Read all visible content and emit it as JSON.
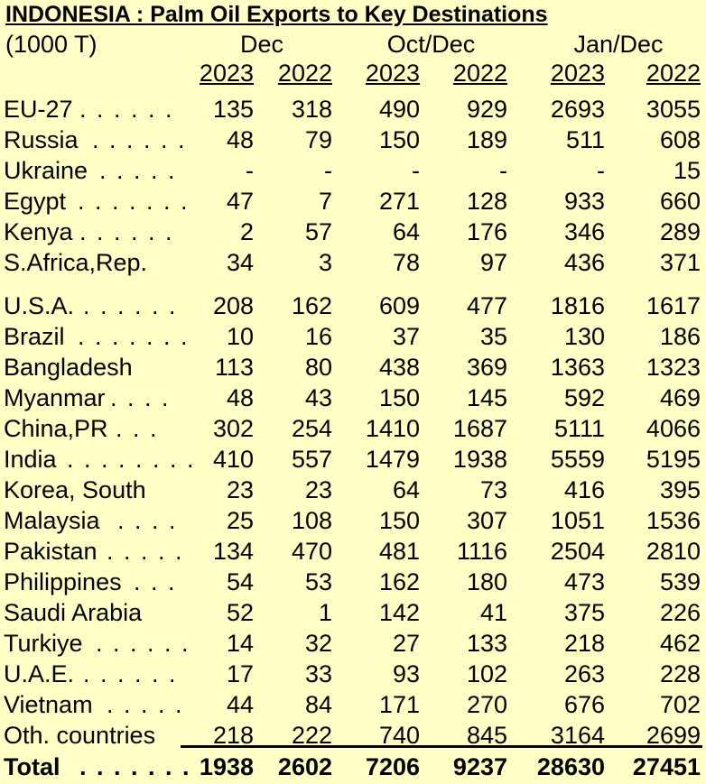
{
  "title": "INDONESIA :  Palm Oil Exports to Key Destinations",
  "unit": "(1000 T)",
  "periods": [
    "Dec",
    "Oct/Dec",
    "Jan/Dec"
  ],
  "years": [
    "2023",
    "2022",
    "2023",
    "2022",
    "2023",
    "2022"
  ],
  "rows": [
    {
      "country": "EU-27",
      "dots": ". . . . . .",
      "values": [
        "135",
        "318",
        "490",
        "929",
        "2693",
        "3055"
      ]
    },
    {
      "country": "Russia",
      "dots": ". . . . . .",
      "values": [
        "48",
        "79",
        "150",
        "189",
        "511",
        "608"
      ]
    },
    {
      "country": "Ukraine",
      "dots": ". . . . .",
      "values": [
        "-",
        "-",
        "-",
        "-",
        "-",
        "15"
      ]
    },
    {
      "country": "Egypt",
      "dots": ". . . . . . .",
      "values": [
        "47",
        "7",
        "271",
        "128",
        "933",
        "660"
      ]
    },
    {
      "country": "Kenya",
      "dots": ". . . . . .",
      "values": [
        "2",
        "57",
        "64",
        "176",
        "346",
        "289"
      ]
    },
    {
      "country": "S.Africa,Rep.",
      "dots": "",
      "values": [
        "34",
        "3",
        "78",
        "97",
        "436",
        "371"
      ]
    },
    {
      "country": "U.S.A.",
      "dots": ". . . . . .",
      "values": [
        "208",
        "162",
        "609",
        "477",
        "1816",
        "1617"
      ]
    },
    {
      "country": "Brazil",
      "dots": ". . . . . . .",
      "values": [
        "10",
        "16",
        "37",
        "35",
        "130",
        "186"
      ]
    },
    {
      "country": "Bangladesh",
      "dots": "",
      "values": [
        "113",
        "80",
        "438",
        "369",
        "1363",
        "1323"
      ]
    },
    {
      "country": "Myanmar",
      "dots": ". . . .",
      "values": [
        "48",
        "43",
        "150",
        "145",
        "592",
        "469"
      ]
    },
    {
      "country": "China,PR",
      "dots": ". . .",
      "values": [
        "302",
        "254",
        "1410",
        "1687",
        "5111",
        "4066"
      ]
    },
    {
      "country": "India",
      "dots": ". . . . . . . .",
      "values": [
        "410",
        "557",
        "1479",
        "1938",
        "5559",
        "5195"
      ]
    },
    {
      "country": "Korea, South",
      "dots": "",
      "values": [
        "23",
        "23",
        "64",
        "73",
        "416",
        "395"
      ]
    },
    {
      "country": "Malaysia",
      "dots": ". . . .",
      "values": [
        "25",
        "108",
        "150",
        "307",
        "1051",
        "1536"
      ]
    },
    {
      "country": "Pakistan",
      "dots": ". . . . .",
      "values": [
        "134",
        "470",
        "481",
        "1116",
        "2504",
        "2810"
      ]
    },
    {
      "country": "Philippines",
      "dots": ". . .",
      "values": [
        "54",
        "53",
        "162",
        "180",
        "473",
        "539"
      ]
    },
    {
      "country": "Saudi Arabia",
      "dots": "",
      "values": [
        "52",
        "1",
        "142",
        "41",
        "375",
        "226"
      ]
    },
    {
      "country": "Turkiye",
      "dots": ". . . . . .",
      "values": [
        "14",
        "32",
        "27",
        "133",
        "218",
        "462"
      ]
    },
    {
      "country": "U.A.E.",
      "dots": ". . . . . .",
      "values": [
        "17",
        "33",
        "93",
        "102",
        "263",
        "228"
      ]
    },
    {
      "country": "Vietnam",
      "dots": ". . . . .",
      "values": [
        "44",
        "84",
        "171",
        "270",
        "676",
        "702"
      ]
    },
    {
      "country": "Oth. countries",
      "dots": "",
      "values": [
        "218",
        "222",
        "740",
        "845",
        "3164",
        "2699"
      ]
    }
  ],
  "total": {
    "country": "Total",
    "dots": ". . . . . . .",
    "values": [
      "1938",
      "2602",
      "7206",
      "9237",
      "28630",
      "27451"
    ]
  }
}
